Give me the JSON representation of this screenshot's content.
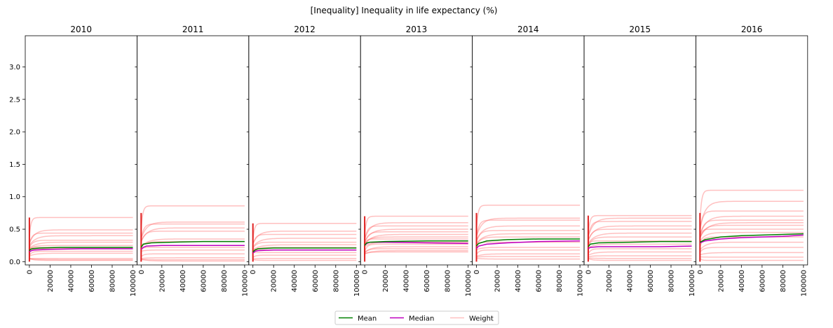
{
  "chart_data": {
    "type": "line",
    "title": "[Inequality] Inequality in life expectancy (%)",
    "xlim": [
      -4000,
      104000
    ],
    "ylim": [
      -0.05,
      3.48
    ],
    "x_ticks": [
      0,
      20000,
      40000,
      60000,
      80000,
      100000
    ],
    "x_tick_labels": [
      "0",
      "20000",
      "40000",
      "60000",
      "80000",
      "100000"
    ],
    "y_ticks": [
      0.0,
      0.5,
      1.0,
      1.5,
      2.0,
      2.5,
      3.0
    ],
    "y_tick_labels": [
      "0.0",
      "0.5",
      "1.0",
      "1.5",
      "2.0",
      "2.5",
      "3.0"
    ],
    "legend": {
      "placement": "bottom-center",
      "entries": [
        {
          "label": "Mean",
          "color": "#008000"
        },
        {
          "label": "Median",
          "color": "#bf00bf"
        },
        {
          "label": "Weight",
          "color": "#ffc0c0"
        }
      ]
    },
    "panels": [
      {
        "title": "2010",
        "mean": [
          [
            0,
            0.17
          ],
          [
            1000,
            0.19
          ],
          [
            3000,
            0.2
          ],
          [
            10000,
            0.21
          ],
          [
            30000,
            0.22
          ],
          [
            60000,
            0.22
          ],
          [
            100000,
            0.22
          ]
        ],
        "median": [
          [
            0,
            0.15
          ],
          [
            2000,
            0.17
          ],
          [
            5000,
            0.18
          ],
          [
            20000,
            0.19
          ],
          [
            50000,
            0.2
          ],
          [
            100000,
            0.2
          ]
        ],
        "weights": [
          0.68,
          0.49,
          0.44,
          0.4,
          0.33,
          0.3,
          0.25,
          0.22,
          0.2,
          0.16,
          0.13,
          0.05,
          0.03,
          0.02
        ]
      },
      {
        "title": "2011",
        "mean": [
          [
            0,
            0.22
          ],
          [
            2000,
            0.27
          ],
          [
            10000,
            0.29
          ],
          [
            30000,
            0.3
          ],
          [
            60000,
            0.31
          ],
          [
            100000,
            0.31
          ]
        ],
        "median": [
          [
            0,
            0.19
          ],
          [
            2000,
            0.22
          ],
          [
            5000,
            0.24
          ],
          [
            20000,
            0.25
          ],
          [
            100000,
            0.25
          ]
        ],
        "weights": [
          0.86,
          0.61,
          0.58,
          0.52,
          0.47,
          0.35,
          0.31,
          0.22,
          0.18,
          0.12,
          0.06,
          0.03,
          0.01
        ]
      },
      {
        "title": "2012",
        "mean": [
          [
            0,
            0.15
          ],
          [
            2000,
            0.18
          ],
          [
            5000,
            0.2
          ],
          [
            20000,
            0.21
          ],
          [
            60000,
            0.21
          ],
          [
            100000,
            0.21
          ]
        ],
        "median": [
          [
            0,
            0.13
          ],
          [
            2000,
            0.16
          ],
          [
            5000,
            0.17
          ],
          [
            20000,
            0.18
          ],
          [
            100000,
            0.18
          ]
        ],
        "weights": [
          0.59,
          0.47,
          0.42,
          0.36,
          0.3,
          0.26,
          0.22,
          0.18,
          0.14,
          0.1,
          0.05,
          0.02
        ]
      },
      {
        "title": "2013",
        "mean": [
          [
            0,
            0.25
          ],
          [
            2000,
            0.29
          ],
          [
            5000,
            0.3
          ],
          [
            20000,
            0.31
          ],
          [
            60000,
            0.32
          ],
          [
            100000,
            0.32
          ]
        ],
        "median": [
          [
            0,
            0.25
          ],
          [
            2000,
            0.28
          ],
          [
            5000,
            0.3
          ],
          [
            20000,
            0.3
          ],
          [
            60000,
            0.29
          ],
          [
            100000,
            0.28
          ]
        ],
        "weights": [
          0.7,
          0.6,
          0.55,
          0.5,
          0.46,
          0.42,
          0.38,
          0.35,
          0.3,
          0.27,
          0.23,
          0.2,
          0.17,
          0.15
        ]
      },
      {
        "title": "2014",
        "mean": [
          [
            0,
            0.24
          ],
          [
            2000,
            0.28
          ],
          [
            10000,
            0.32
          ],
          [
            30000,
            0.34
          ],
          [
            60000,
            0.35
          ],
          [
            100000,
            0.35
          ]
        ],
        "median": [
          [
            0,
            0.2
          ],
          [
            2000,
            0.24
          ],
          [
            10000,
            0.27
          ],
          [
            30000,
            0.29
          ],
          [
            60000,
            0.31
          ],
          [
            100000,
            0.32
          ]
        ],
        "weights": [
          0.87,
          0.67,
          0.64,
          0.55,
          0.48,
          0.43,
          0.38,
          0.3,
          0.22,
          0.18,
          0.12,
          0.08,
          0.04
        ]
      },
      {
        "title": "2015",
        "mean": [
          [
            0,
            0.23
          ],
          [
            2000,
            0.27
          ],
          [
            10000,
            0.29
          ],
          [
            40000,
            0.3
          ],
          [
            70000,
            0.31
          ],
          [
            100000,
            0.31
          ]
        ],
        "median": [
          [
            0,
            0.2
          ],
          [
            2000,
            0.22
          ],
          [
            10000,
            0.23
          ],
          [
            40000,
            0.23
          ],
          [
            70000,
            0.23
          ],
          [
            100000,
            0.24
          ]
        ],
        "weights": [
          0.71,
          0.67,
          0.62,
          0.55,
          0.5,
          0.44,
          0.38,
          0.32,
          0.27,
          0.2,
          0.15,
          0.09,
          0.05,
          0.02
        ]
      },
      {
        "title": "2016",
        "mean": [
          [
            0,
            0.3
          ],
          [
            5000,
            0.34
          ],
          [
            20000,
            0.38
          ],
          [
            40000,
            0.4
          ],
          [
            60000,
            0.41
          ],
          [
            80000,
            0.42
          ],
          [
            100000,
            0.43
          ]
        ],
        "median": [
          [
            0,
            0.29
          ],
          [
            5000,
            0.32
          ],
          [
            20000,
            0.35
          ],
          [
            40000,
            0.37
          ],
          [
            60000,
            0.38
          ],
          [
            80000,
            0.39
          ],
          [
            100000,
            0.41
          ]
        ],
        "weights": [
          1.1,
          0.93,
          0.78,
          0.7,
          0.64,
          0.6,
          0.56,
          0.5,
          0.45,
          0.38,
          0.3,
          0.22,
          0.14,
          0.07,
          0.02
        ]
      }
    ]
  }
}
